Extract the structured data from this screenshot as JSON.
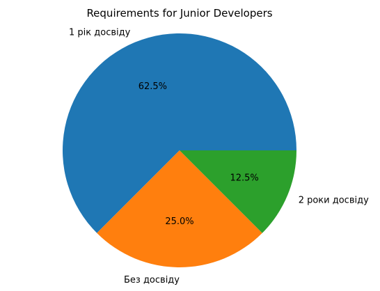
{
  "chart_data": {
    "type": "pie",
    "title": "Requirements for Junior Developers",
    "start_angle_deg": 0,
    "direction": "counterclockwise",
    "slices": [
      {
        "label": "1 рік досвіду",
        "value": 62.5,
        "pct_label": "62.5%",
        "color": "#1f77b4"
      },
      {
        "label": "Без досвіду",
        "value": 25.0,
        "pct_label": "25.0%",
        "color": "#ff7f0e"
      },
      {
        "label": "2 роки досвіду",
        "value": 12.5,
        "pct_label": "12.5%",
        "color": "#2ca02c"
      }
    ]
  }
}
